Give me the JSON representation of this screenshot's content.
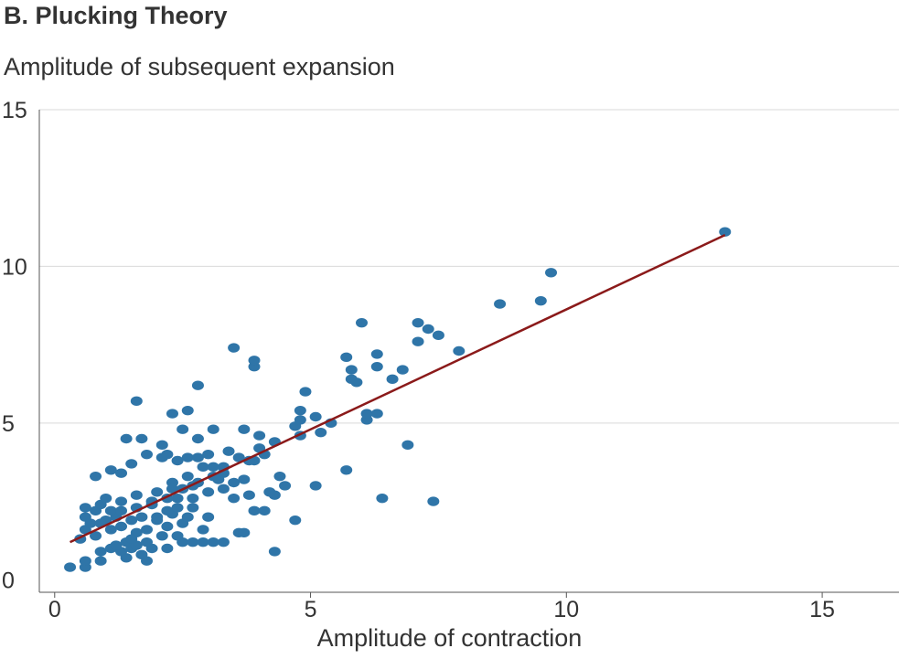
{
  "chart_data": {
    "type": "scatter",
    "title": "B. Plucking Theory",
    "ylabel": "Amplitude of subsequent expansion",
    "xlabel": "Amplitude of contraction",
    "xlim": [
      -0.3,
      16.5
    ],
    "ylim": [
      -0.4,
      15
    ],
    "xticks": [
      0,
      5,
      10,
      15
    ],
    "yticks": [
      0,
      5,
      10,
      15
    ],
    "grid": "horizontal",
    "colors": {
      "points": "#2f75a8",
      "fit_line": "#8b1a1a",
      "grid": "#d9d9d9",
      "axis": "#555555"
    },
    "fit_line": {
      "x": [
        0.3,
        13.1
      ],
      "y": [
        1.2,
        11.0
      ]
    },
    "points": [
      [
        0.3,
        0.4
      ],
      [
        0.6,
        0.4
      ],
      [
        0.6,
        0.6
      ],
      [
        0.9,
        0.6
      ],
      [
        1.4,
        0.7
      ],
      [
        1.8,
        0.6
      ],
      [
        0.9,
        0.9
      ],
      [
        1.1,
        1.0
      ],
      [
        1.3,
        0.9
      ],
      [
        1.5,
        1.0
      ],
      [
        1.7,
        0.8
      ],
      [
        1.9,
        1.0
      ],
      [
        2.2,
        1.0
      ],
      [
        2.5,
        1.2
      ],
      [
        2.7,
        1.2
      ],
      [
        2.9,
        1.2
      ],
      [
        3.1,
        1.2
      ],
      [
        3.3,
        1.2
      ],
      [
        4.3,
        0.9
      ],
      [
        2.1,
        1.4
      ],
      [
        2.4,
        1.4
      ],
      [
        2.9,
        1.6
      ],
      [
        3.6,
        1.5
      ],
      [
        3.7,
        1.5
      ],
      [
        0.5,
        1.3
      ],
      [
        0.8,
        1.4
      ],
      [
        1.1,
        1.6
      ],
      [
        1.3,
        1.7
      ],
      [
        1.6,
        1.5
      ],
      [
        1.8,
        1.6
      ],
      [
        2.2,
        1.7
      ],
      [
        2.5,
        1.8
      ],
      [
        0.6,
        1.6
      ],
      [
        0.7,
        1.8
      ],
      [
        1.0,
        1.9
      ],
      [
        1.2,
        2.0
      ],
      [
        1.5,
        1.9
      ],
      [
        1.7,
        2.0
      ],
      [
        2.0,
        2.0
      ],
      [
        2.3,
        2.1
      ],
      [
        0.6,
        2.0
      ],
      [
        0.8,
        2.2
      ],
      [
        1.1,
        2.2
      ],
      [
        1.3,
        2.2
      ],
      [
        1.6,
        2.3
      ],
      [
        1.9,
        2.4
      ],
      [
        2.2,
        2.2
      ],
      [
        2.4,
        2.3
      ],
      [
        0.6,
        2.3
      ],
      [
        0.9,
        2.4
      ],
      [
        1.0,
        2.6
      ],
      [
        1.3,
        2.5
      ],
      [
        1.6,
        2.7
      ],
      [
        1.9,
        2.5
      ],
      [
        2.4,
        2.6
      ],
      [
        2.7,
        2.6
      ],
      [
        3.0,
        2.8
      ],
      [
        3.3,
        2.9
      ],
      [
        3.5,
        2.6
      ],
      [
        3.8,
        2.7
      ],
      [
        3.9,
        2.2
      ],
      [
        4.1,
        2.2
      ],
      [
        4.3,
        2.7
      ],
      [
        4.5,
        3.0
      ],
      [
        4.7,
        1.9
      ],
      [
        5.1,
        3.0
      ],
      [
        6.4,
        2.6
      ],
      [
        7.4,
        2.5
      ],
      [
        0.8,
        3.3
      ],
      [
        1.1,
        3.5
      ],
      [
        1.3,
        3.4
      ],
      [
        1.5,
        3.7
      ],
      [
        1.8,
        4.0
      ],
      [
        2.1,
        3.9
      ],
      [
        2.4,
        3.8
      ],
      [
        2.6,
        3.9
      ],
      [
        2.8,
        3.9
      ],
      [
        3.1,
        3.3
      ],
      [
        3.3,
        3.6
      ],
      [
        3.6,
        3.9
      ],
      [
        3.9,
        3.8
      ],
      [
        4.1,
        4.0
      ],
      [
        1.4,
        4.5
      ],
      [
        1.7,
        4.5
      ],
      [
        2.1,
        4.3
      ],
      [
        2.5,
        4.8
      ],
      [
        2.8,
        4.5
      ],
      [
        3.1,
        4.8
      ],
      [
        3.4,
        4.1
      ],
      [
        3.7,
        4.8
      ],
      [
        4.0,
        4.6
      ],
      [
        4.3,
        4.4
      ],
      [
        2.3,
        3.1
      ],
      [
        2.6,
        3.3
      ],
      [
        2.8,
        3.1
      ],
      [
        2.9,
        3.6
      ],
      [
        3.1,
        3.6
      ],
      [
        3.3,
        3.4
      ],
      [
        3.8,
        3.8
      ],
      [
        4.4,
        3.3
      ],
      [
        1.6,
        5.7
      ],
      [
        2.3,
        5.3
      ],
      [
        2.6,
        5.4
      ],
      [
        2.8,
        6.2
      ],
      [
        3.5,
        7.4
      ],
      [
        3.9,
        6.8
      ],
      [
        3.9,
        7.0
      ],
      [
        4.7,
        4.9
      ],
      [
        4.8,
        5.1
      ],
      [
        4.8,
        5.4
      ],
      [
        4.8,
        4.6
      ],
      [
        4.9,
        6.0
      ],
      [
        5.1,
        5.2
      ],
      [
        5.2,
        4.7
      ],
      [
        5.4,
        5.0
      ],
      [
        5.7,
        3.5
      ],
      [
        5.7,
        7.1
      ],
      [
        5.8,
        6.7
      ],
      [
        5.8,
        6.4
      ],
      [
        5.9,
        6.3
      ],
      [
        6.0,
        8.2
      ],
      [
        6.1,
        5.1
      ],
      [
        6.1,
        5.3
      ],
      [
        6.3,
        5.3
      ],
      [
        6.3,
        6.8
      ],
      [
        6.3,
        7.2
      ],
      [
        6.6,
        6.4
      ],
      [
        6.8,
        6.7
      ],
      [
        6.9,
        4.3
      ],
      [
        7.1,
        8.2
      ],
      [
        7.1,
        7.6
      ],
      [
        7.3,
        8.0
      ],
      [
        7.5,
        7.8
      ],
      [
        7.9,
        7.3
      ],
      [
        8.7,
        8.8
      ],
      [
        9.5,
        8.9
      ],
      [
        9.7,
        9.8
      ],
      [
        13.1,
        11.1
      ],
      [
        2.0,
        1.9
      ],
      [
        2.3,
        2.9
      ],
      [
        2.7,
        2.3
      ],
      [
        3.0,
        2.0
      ],
      [
        0.9,
        1.8
      ],
      [
        1.2,
        1.1
      ],
      [
        1.4,
        1.2
      ],
      [
        1.6,
        1.1
      ],
      [
        2.0,
        2.8
      ],
      [
        2.6,
        2.0
      ],
      [
        3.2,
        3.2
      ],
      [
        3.5,
        3.1
      ],
      [
        4.0,
        4.2
      ],
      [
        4.2,
        2.8
      ],
      [
        3.7,
        3.2
      ],
      [
        2.2,
        4.0
      ],
      [
        2.5,
        2.9
      ],
      [
        3.0,
        4.0
      ],
      [
        1.8,
        1.2
      ],
      [
        2.2,
        2.6
      ],
      [
        2.7,
        3.0
      ],
      [
        1.5,
        1.3
      ]
    ]
  }
}
